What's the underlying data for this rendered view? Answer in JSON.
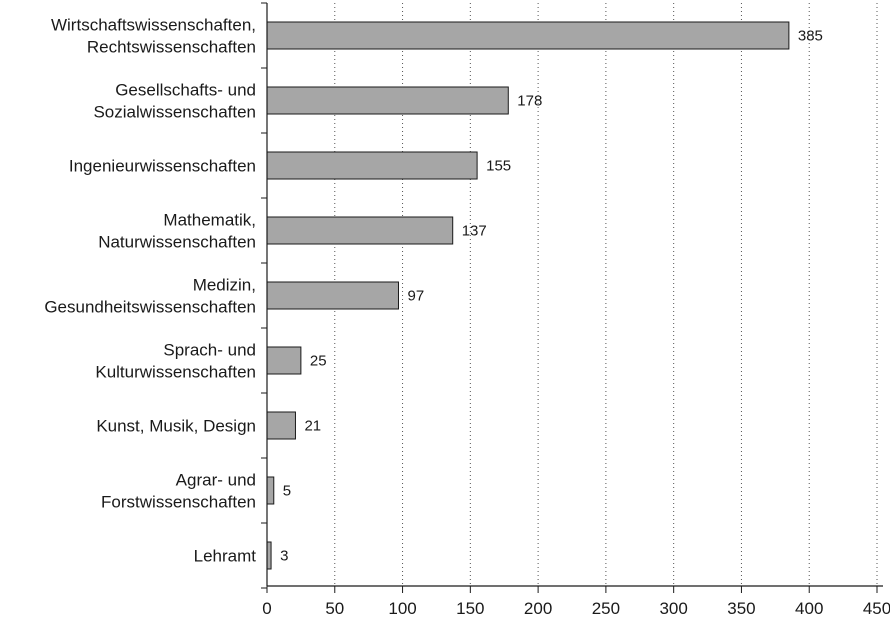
{
  "chart_data": {
    "type": "bar",
    "orientation": "horizontal",
    "categories": [
      [
        "Wirtschaftswissenschaften,",
        "Rechtswissenschaften"
      ],
      [
        "Gesellschafts- und",
        "Sozialwissenschaften"
      ],
      [
        "Ingenieurwissenschaften"
      ],
      [
        "Mathematik,",
        "Naturwissenschaften"
      ],
      [
        "Medizin,",
        "Gesundheitswissenschaften"
      ],
      [
        "Sprach- und",
        "Kulturwissenschaften"
      ],
      [
        "Kunst, Musik, Design"
      ],
      [
        "Agrar- und",
        "Forstwissenschaften"
      ],
      [
        "Lehramt"
      ]
    ],
    "values": [
      385,
      178,
      155,
      137,
      97,
      25,
      21,
      5,
      3
    ],
    "data_labels": [
      "385",
      "178",
      "155",
      "137",
      "97",
      "25",
      "21",
      "5",
      "3"
    ],
    "xlim": [
      0,
      450
    ],
    "x_ticks": [
      0,
      50,
      100,
      150,
      200,
      250,
      300,
      350,
      400,
      450
    ],
    "x_tick_labels": [
      "0",
      "50",
      "100",
      "150",
      "200",
      "250",
      "300",
      "350",
      "400",
      "450"
    ],
    "grid": "vertical-dotted",
    "bar_color": "#a6a6a6",
    "bar_edge_color": "#1a1a1a"
  }
}
